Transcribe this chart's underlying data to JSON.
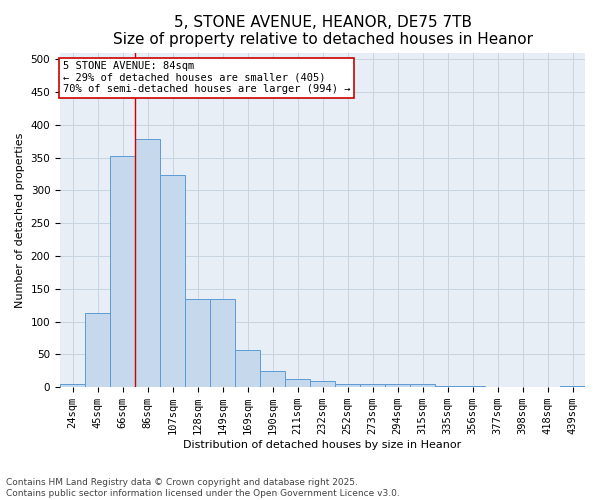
{
  "title": "5, STONE AVENUE, HEANOR, DE75 7TB",
  "subtitle": "Size of property relative to detached houses in Heanor",
  "xlabel": "Distribution of detached houses by size in Heanor",
  "ylabel": "Number of detached properties",
  "categories": [
    "24sqm",
    "45sqm",
    "66sqm",
    "86sqm",
    "107sqm",
    "128sqm",
    "149sqm",
    "169sqm",
    "190sqm",
    "211sqm",
    "232sqm",
    "252sqm",
    "273sqm",
    "294sqm",
    "315sqm",
    "335sqm",
    "356sqm",
    "377sqm",
    "398sqm",
    "418sqm",
    "439sqm"
  ],
  "values": [
    5,
    113,
    352,
    378,
    323,
    135,
    135,
    57,
    25,
    12,
    9,
    5,
    5,
    5,
    5,
    2,
    2,
    1,
    1,
    1,
    2
  ],
  "bar_color": "#c5d8ec",
  "bar_edge_color": "#5b9bd5",
  "grid_color": "#c8d4e0",
  "background_color": "#e8eef5",
  "red_line_index": 3,
  "annotation_title": "5 STONE AVENUE: 84sqm",
  "annotation_line1": "← 29% of detached houses are smaller (405)",
  "annotation_line2": "70% of semi-detached houses are larger (994) →",
  "annotation_box_color": "#cc0000",
  "footer_line1": "Contains HM Land Registry data © Crown copyright and database right 2025.",
  "footer_line2": "Contains public sector information licensed under the Open Government Licence v3.0.",
  "ylim": [
    0,
    510
  ],
  "yticks": [
    0,
    50,
    100,
    150,
    200,
    250,
    300,
    350,
    400,
    450,
    500
  ],
  "title_fontsize": 11,
  "subtitle_fontsize": 9.5,
  "axis_label_fontsize": 8,
  "tick_fontsize": 7.5,
  "annotation_fontsize": 7.5,
  "footer_fontsize": 6.5
}
